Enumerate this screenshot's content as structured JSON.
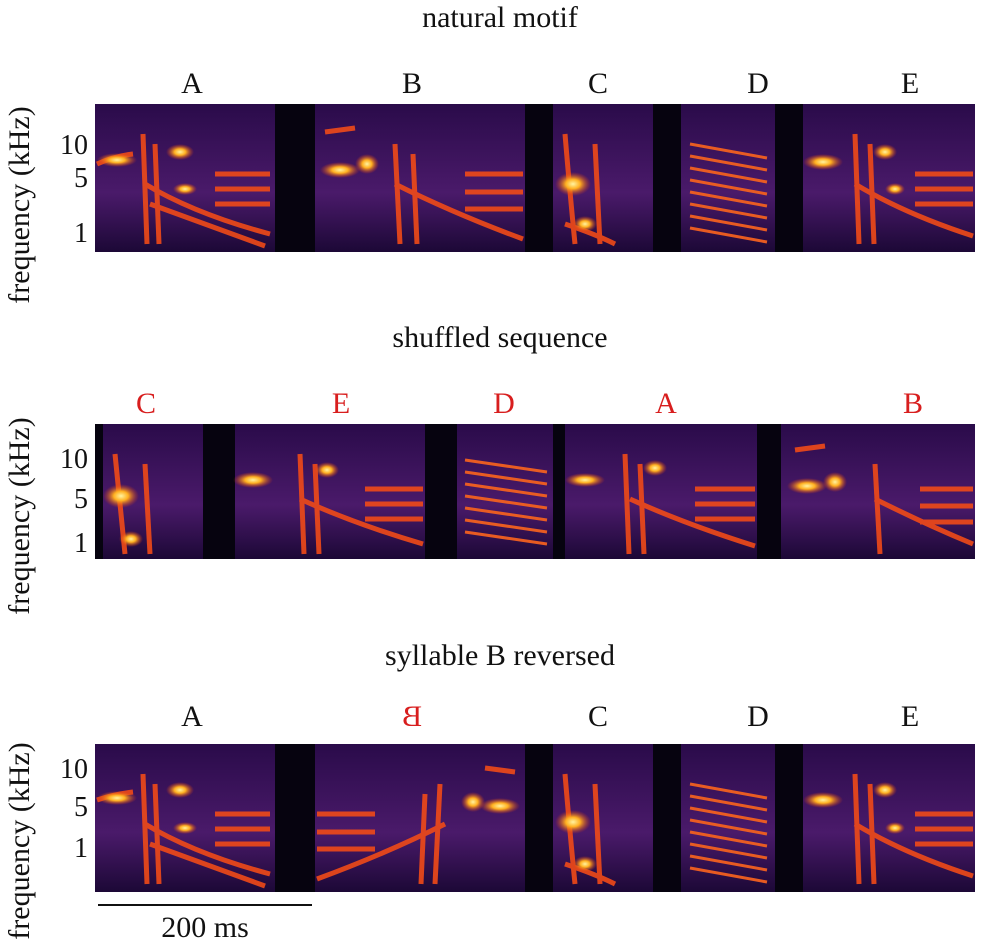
{
  "figure": {
    "ylabel": "frequency (kHz)",
    "yticks": [
      "10",
      "5",
      "1"
    ],
    "scalebar_label": "200 ms",
    "colors": {
      "highlight": "#d81e1e",
      "background": "#06030f"
    }
  },
  "panels": [
    {
      "title": "natural motif",
      "syllables": [
        {
          "label": "A",
          "red": false,
          "reversed": false
        },
        {
          "label": "B",
          "red": false,
          "reversed": false
        },
        {
          "label": "C",
          "red": false,
          "reversed": false
        },
        {
          "label": "D",
          "red": false,
          "reversed": false
        },
        {
          "label": "E",
          "red": false,
          "reversed": false
        }
      ]
    },
    {
      "title": "shuffled sequence",
      "syllables": [
        {
          "label": "C",
          "red": true,
          "reversed": false
        },
        {
          "label": "E",
          "red": true,
          "reversed": false
        },
        {
          "label": "D",
          "red": true,
          "reversed": false
        },
        {
          "label": "A",
          "red": true,
          "reversed": false
        },
        {
          "label": "B",
          "red": true,
          "reversed": false
        }
      ]
    },
    {
      "title": "syllable B reversed",
      "syllables": [
        {
          "label": "A",
          "red": false,
          "reversed": false
        },
        {
          "label": "B",
          "red": true,
          "reversed": true
        },
        {
          "label": "C",
          "red": false,
          "reversed": false
        },
        {
          "label": "D",
          "red": false,
          "reversed": false
        },
        {
          "label": "E",
          "red": false,
          "reversed": false
        }
      ]
    }
  ]
}
